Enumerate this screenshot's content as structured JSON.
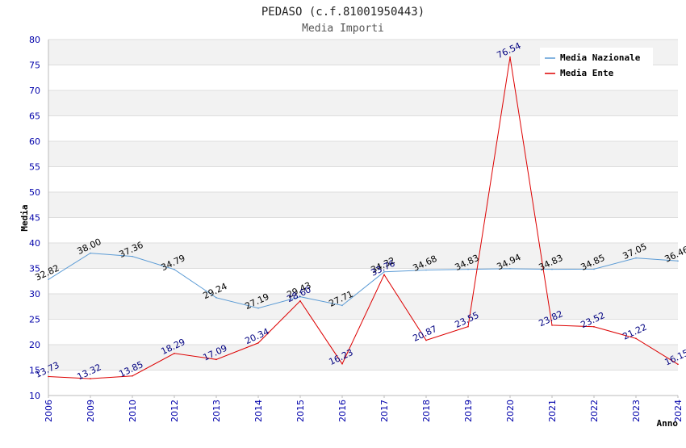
{
  "chart_data": {
    "type": "line",
    "title": "PEDASO (c.f.81001950443)",
    "subtitle": "Media Importi",
    "xlabel": "Anno",
    "ylabel": "Media",
    "ylim": [
      10,
      80
    ],
    "yticks": [
      "10",
      "15",
      "20",
      "25",
      "30",
      "35",
      "40",
      "45",
      "50",
      "55",
      "60",
      "65",
      "70",
      "75",
      "80"
    ],
    "categories": [
      "2006",
      "2009",
      "2010",
      "2012",
      "2013",
      "2014",
      "2015",
      "2016",
      "2017",
      "2018",
      "2019",
      "2020",
      "2021",
      "2022",
      "2023",
      "2024"
    ],
    "legend_position": "top-right",
    "series": [
      {
        "name": "Media Nazionale",
        "color": "#5b9bd5",
        "values": [
          32.82,
          38.0,
          37.36,
          34.79,
          29.24,
          27.19,
          29.43,
          27.71,
          34.32,
          34.68,
          34.83,
          34.94,
          34.83,
          34.85,
          37.05,
          36.46
        ],
        "labels": [
          "32.82",
          "38.00",
          "37.36",
          "34.79",
          "29.24",
          "27.19",
          "29.43",
          "27.71",
          "34.32",
          "34.68",
          "34.83",
          "34.94",
          "34.83",
          "34.85",
          "37.05",
          "36.46"
        ]
      },
      {
        "name": "Media Ente",
        "color": "#dd0000",
        "values": [
          13.73,
          13.32,
          13.85,
          18.29,
          17.09,
          20.34,
          28.6,
          16.23,
          33.76,
          20.87,
          23.55,
          76.54,
          23.82,
          23.52,
          21.22,
          16.15
        ],
        "labels": [
          "13.73",
          "13.32",
          "13.85",
          "18.29",
          "17.09",
          "20.34",
          "28.60",
          "16.23",
          "33.76",
          "20.87",
          "23.55",
          "76.54",
          "23.82",
          "23.52",
          "21.22",
          "16.15"
        ]
      }
    ]
  }
}
